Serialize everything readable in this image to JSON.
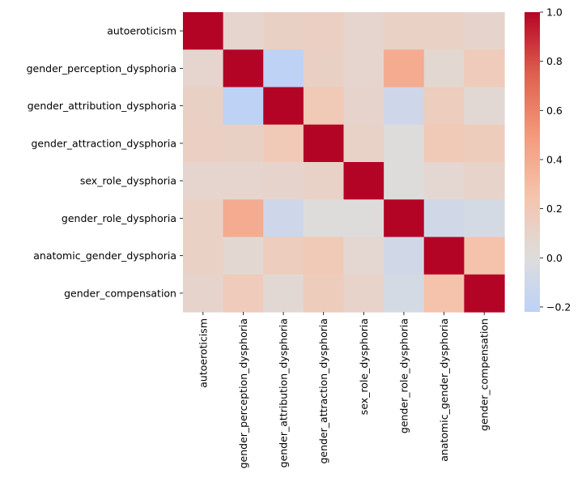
{
  "chart_data": {
    "type": "heatmap",
    "title": "",
    "variables": [
      "autoeroticism",
      "gender_perception_dysphoria",
      "gender_attribution_dysphoria",
      "gender_attraction_dysphoria",
      "sex_role_dysphoria",
      "gender_role_dysphoria",
      "anatomic_gender_dysphoria",
      "gender_compensation"
    ],
    "matrix": [
      [
        1.0,
        0.08,
        0.13,
        0.14,
        0.08,
        0.12,
        0.12,
        0.09
      ],
      [
        0.08,
        1.0,
        -0.21,
        0.13,
        0.08,
        0.4,
        0.06,
        0.18
      ],
      [
        0.13,
        -0.21,
        1.0,
        0.2,
        0.09,
        -0.11,
        0.16,
        0.05
      ],
      [
        0.14,
        0.13,
        0.2,
        1.0,
        0.11,
        0.01,
        0.2,
        0.17
      ],
      [
        0.08,
        0.08,
        0.09,
        0.11,
        1.0,
        0.01,
        0.07,
        0.1
      ],
      [
        0.12,
        0.4,
        -0.11,
        0.01,
        0.01,
        1.0,
        -0.09,
        -0.06
      ],
      [
        0.12,
        0.06,
        0.16,
        0.2,
        0.07,
        -0.09,
        1.0,
        0.26
      ],
      [
        0.09,
        0.18,
        0.05,
        0.17,
        0.1,
        -0.06,
        0.26,
        1.0
      ]
    ],
    "colormap": "coolwarm",
    "center": 0.0,
    "vmin": -0.22,
    "vmax": 1.0,
    "colorbar": {
      "ticks": [
        1.0,
        0.8,
        0.6,
        0.4,
        0.2,
        0.0,
        -0.2
      ],
      "tick_labels": [
        "1.0",
        "0.8",
        "0.6",
        "0.4",
        "0.2",
        "0.0",
        "−0.2"
      ]
    }
  }
}
